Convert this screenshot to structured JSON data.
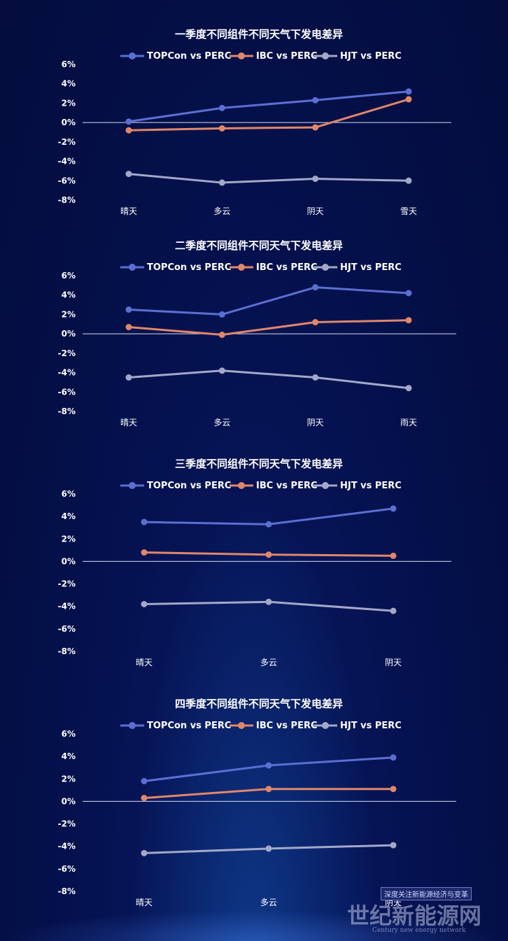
{
  "chart_data": [
    {
      "type": "line",
      "title": "一季度不同组件不同天气下发电差异",
      "categories": [
        "晴天",
        "多云",
        "阴天",
        "雪天"
      ],
      "yticks": [
        "6%",
        "4%",
        "2%",
        "0%",
        "-2%",
        "-4%",
        "-6%",
        "-8%"
      ],
      "ylim": [
        -8,
        6
      ],
      "series": [
        {
          "name": "TOPCon vs PERC",
          "color": "#5b6fd3",
          "values": [
            0.1,
            1.5,
            2.3,
            3.2
          ]
        },
        {
          "name": "IBC vs PERC",
          "color": "#e0876a",
          "values": [
            -0.8,
            -0.6,
            -0.5,
            2.4
          ]
        },
        {
          "name": "HJT vs PERC",
          "color": "#a4a8c8",
          "values": [
            -5.3,
            -6.2,
            -5.8,
            -6.0
          ]
        }
      ]
    },
    {
      "type": "line",
      "title": "二季度不同组件不同天气下发电差异",
      "categories": [
        "晴天",
        "多云",
        "阴天",
        "雨天"
      ],
      "yticks": [
        "6%",
        "4%",
        "2%",
        "0%",
        "-2%",
        "-4%",
        "-6%",
        "-8%"
      ],
      "ylim": [
        -8,
        6
      ],
      "series": [
        {
          "name": "TOPCon vs PERC",
          "color": "#5b6fd3",
          "values": [
            2.5,
            2.0,
            4.8,
            4.2
          ]
        },
        {
          "name": "IBC vs PERC",
          "color": "#e0876a",
          "values": [
            0.7,
            -0.1,
            1.2,
            1.4
          ]
        },
        {
          "name": "HJT vs PERC",
          "color": "#a4a8c8",
          "values": [
            -4.5,
            -3.8,
            -4.5,
            -5.6
          ]
        }
      ]
    },
    {
      "type": "line",
      "title": "三季度不同组件不同天气下发电差异",
      "categories": [
        "晴天",
        "多云",
        "阴天"
      ],
      "yticks": [
        "6%",
        "4%",
        "2%",
        "0%",
        "-2%",
        "-4%",
        "-6%",
        "-8%"
      ],
      "ylim": [
        -8,
        6
      ],
      "series": [
        {
          "name": "TOPCon vs PERC",
          "color": "#5b6fd3",
          "values": [
            3.5,
            3.3,
            4.7
          ]
        },
        {
          "name": "IBC vs PERC",
          "color": "#e0876a",
          "values": [
            0.8,
            0.6,
            0.5
          ]
        },
        {
          "name": "HJT vs PERC",
          "color": "#a4a8c8",
          "values": [
            -3.8,
            -3.6,
            -4.4
          ]
        }
      ]
    },
    {
      "type": "line",
      "title": "四季度不同组件不同天气下发电差异",
      "categories": [
        "晴天",
        "多云",
        "阴天"
      ],
      "yticks": [
        "6%",
        "4%",
        "2%",
        "0%",
        "-2%",
        "-4%",
        "-6%",
        "-8%"
      ],
      "ylim": [
        -8,
        6
      ],
      "series": [
        {
          "name": "TOPCon vs PERC",
          "color": "#5b6fd3",
          "values": [
            1.8,
            3.2,
            3.9
          ]
        },
        {
          "name": "IBC vs PERC",
          "color": "#e0876a",
          "values": [
            0.3,
            1.1,
            1.1
          ]
        },
        {
          "name": "HJT vs PERC",
          "color": "#a4a8c8",
          "values": [
            -4.6,
            -4.2,
            -3.9
          ]
        }
      ]
    }
  ],
  "watermark": {
    "tagline": "深度关注新能源经济与变革",
    "name": "世纪新能源网",
    "english": "Century new energy network"
  }
}
